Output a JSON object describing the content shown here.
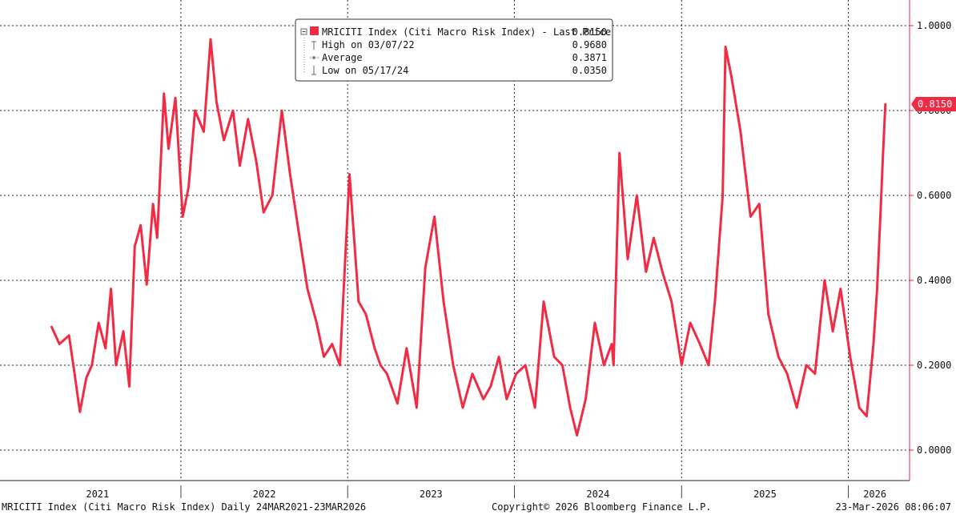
{
  "chart_data": {
    "type": "line",
    "series": [
      {
        "name": "MRICITI Index (Citi Macro Risk Index) - Last Price",
        "color": "#f22b45",
        "x": [
          "2021-03-24",
          "2021-04-10",
          "2021-05-01",
          "2021-05-12",
          "2021-05-25",
          "2021-06-08",
          "2021-06-20",
          "2021-07-05",
          "2021-07-20",
          "2021-08-01",
          "2021-08-12",
          "2021-08-28",
          "2021-09-10",
          "2021-09-22",
          "2021-10-05",
          "2021-10-18",
          "2021-11-01",
          "2021-11-10",
          "2021-11-25",
          "2021-12-05",
          "2021-12-20",
          "2022-01-05",
          "2022-01-18",
          "2022-02-01",
          "2022-02-20",
          "2022-03-07",
          "2022-03-20",
          "2022-04-05",
          "2022-04-25",
          "2022-05-10",
          "2022-05-28",
          "2022-06-15",
          "2022-07-01",
          "2022-07-20",
          "2022-08-10",
          "2022-08-28",
          "2022-09-15",
          "2022-10-05",
          "2022-10-25",
          "2022-11-10",
          "2022-11-28",
          "2022-12-15",
          "2023-01-05",
          "2023-01-25",
          "2023-02-10",
          "2023-03-01",
          "2023-03-14",
          "2023-03-28",
          "2023-04-20",
          "2023-05-10",
          "2023-06-01",
          "2023-06-20",
          "2023-07-10",
          "2023-07-30",
          "2023-08-20",
          "2023-09-10",
          "2023-10-01",
          "2023-10-25",
          "2023-11-10",
          "2023-11-28",
          "2023-12-15",
          "2024-01-05",
          "2024-01-25",
          "2024-02-15",
          "2024-03-05",
          "2024-03-28",
          "2024-04-15",
          "2024-05-02",
          "2024-05-17",
          "2024-06-05",
          "2024-06-25",
          "2024-07-15",
          "2024-08-01",
          "2024-08-05",
          "2024-08-18",
          "2024-09-05",
          "2024-09-25",
          "2024-10-15",
          "2024-11-01",
          "2024-11-20",
          "2024-12-10",
          "2025-01-01",
          "2025-01-20",
          "2025-02-10",
          "2025-03-01",
          "2025-03-15",
          "2025-04-01",
          "2025-04-07",
          "2025-04-20",
          "2025-05-10",
          "2025-06-01",
          "2025-06-20",
          "2025-07-10",
          "2025-08-01",
          "2025-08-20",
          "2025-09-10",
          "2025-10-01",
          "2025-10-20",
          "2025-11-10",
          "2025-11-28",
          "2025-12-15",
          "2026-01-05",
          "2026-01-25",
          "2026-02-10",
          "2026-02-25",
          "2026-03-05",
          "2026-03-12",
          "2026-03-18",
          "2026-03-23"
        ],
        "values": [
          0.29,
          0.25,
          0.27,
          0.19,
          0.09,
          0.17,
          0.2,
          0.3,
          0.24,
          0.38,
          0.2,
          0.28,
          0.15,
          0.48,
          0.53,
          0.39,
          0.58,
          0.5,
          0.84,
          0.71,
          0.83,
          0.55,
          0.62,
          0.8,
          0.75,
          0.968,
          0.82,
          0.73,
          0.8,
          0.67,
          0.78,
          0.68,
          0.56,
          0.6,
          0.8,
          0.65,
          0.52,
          0.38,
          0.3,
          0.22,
          0.25,
          0.2,
          0.65,
          0.35,
          0.32,
          0.24,
          0.2,
          0.18,
          0.11,
          0.24,
          0.1,
          0.43,
          0.55,
          0.35,
          0.2,
          0.1,
          0.18,
          0.12,
          0.15,
          0.22,
          0.12,
          0.18,
          0.2,
          0.1,
          0.35,
          0.22,
          0.2,
          0.1,
          0.035,
          0.12,
          0.3,
          0.2,
          0.25,
          0.2,
          0.7,
          0.45,
          0.6,
          0.42,
          0.5,
          0.42,
          0.35,
          0.2,
          0.3,
          0.25,
          0.2,
          0.35,
          0.6,
          0.95,
          0.88,
          0.75,
          0.55,
          0.58,
          0.32,
          0.22,
          0.18,
          0.1,
          0.2,
          0.18,
          0.4,
          0.28,
          0.38,
          0.22,
          0.1,
          0.08,
          0.25,
          0.38,
          0.55,
          0.7,
          0.815
        ]
      }
    ],
    "ylim": [
      0,
      1
    ],
    "yticks": [
      "0.0000",
      "0.2000",
      "0.4000",
      "0.6000",
      "0.8000",
      "1.0000"
    ],
    "xlim": [
      "2020-12-01",
      "2026-05-15"
    ],
    "year_labels": [
      "2021",
      "2022",
      "2023",
      "2024",
      "2025",
      "2026"
    ],
    "grid": true,
    "legend": {
      "placement": "top-center",
      "title": "MRICITI Index (Citi Macro Risk Index) - Last Price",
      "title_value": "0.8150",
      "rows": [
        {
          "label": "High on 03/07/22",
          "value": "0.9680"
        },
        {
          "label": "Average",
          "value": "0.3871"
        },
        {
          "label": "Low on 05/17/24",
          "value": "0.0350"
        }
      ]
    },
    "last_price_label": "0.8150",
    "last_price_value": 0.815
  },
  "footer": {
    "left": "MRICITI Index (Citi Macro Risk Index) Daily 24MAR2021-23MAR2026",
    "center": "Copyright© 2026 Bloomberg Finance L.P.",
    "right": "23-Mar-2026 08:06:07"
  }
}
